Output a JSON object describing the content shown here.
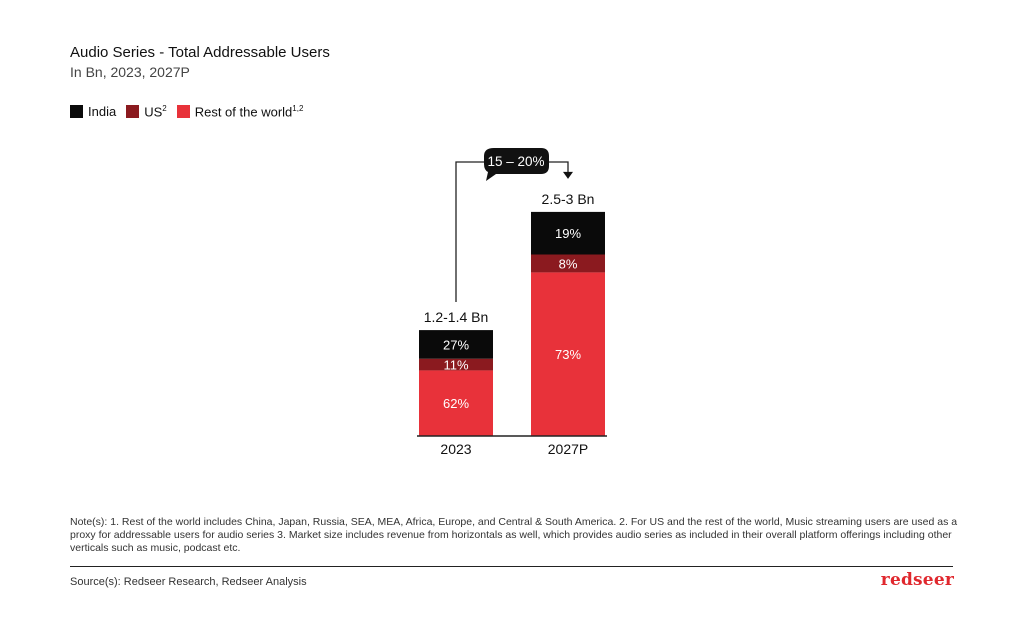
{
  "header": {
    "title": "Audio Series - Total  Addressable Users",
    "subtitle": "In Bn, 2023, 2027P"
  },
  "legend": [
    {
      "label": "India",
      "sup": "",
      "color": "#0a0a0a"
    },
    {
      "label": "US",
      "sup": "2",
      "color": "#8b1a1f"
    },
    {
      "label": "Rest of the world",
      "sup": "1,2",
      "color": "#e8323a"
    }
  ],
  "chart_data": {
    "type": "bar",
    "stacked": true,
    "categories": [
      "2023",
      "2027P"
    ],
    "totals": [
      "1.2-1.4 Bn",
      "2.5-3 Bn"
    ],
    "total_midpoints_bn": [
      1.3,
      2.75
    ],
    "series": [
      {
        "name": "Rest of the world",
        "color": "#e8323a",
        "values": [
          62,
          73
        ],
        "labels": [
          "62%",
          "73%"
        ]
      },
      {
        "name": "US",
        "color": "#8b1a1f",
        "values": [
          11,
          8
        ],
        "labels": [
          "11%",
          "8%"
        ]
      },
      {
        "name": "India",
        "color": "#0a0a0a",
        "values": [
          27,
          19
        ],
        "labels": [
          "27%",
          "19%"
        ]
      }
    ],
    "growth_label": "15 – 20%",
    "title": "",
    "xlabel": "",
    "ylabel": "",
    "grid": false,
    "legend_position": "top-left"
  },
  "footer": {
    "notes": "Note(s): 1. Rest of the world includes China, Japan, Russia, SEA, MEA, Africa, Europe, and Central & South America. 2. For US and the rest of the world, Music streaming users are used as a proxy for addressable users for audio series 3. Market size includes revenue from horizontals as well, which provides audio series  as included in their overall platform offerings including  other verticals such as music, podcast etc.",
    "source": "Source(s): Redseer Research, Redseer Analysis",
    "brand": "redseer"
  }
}
